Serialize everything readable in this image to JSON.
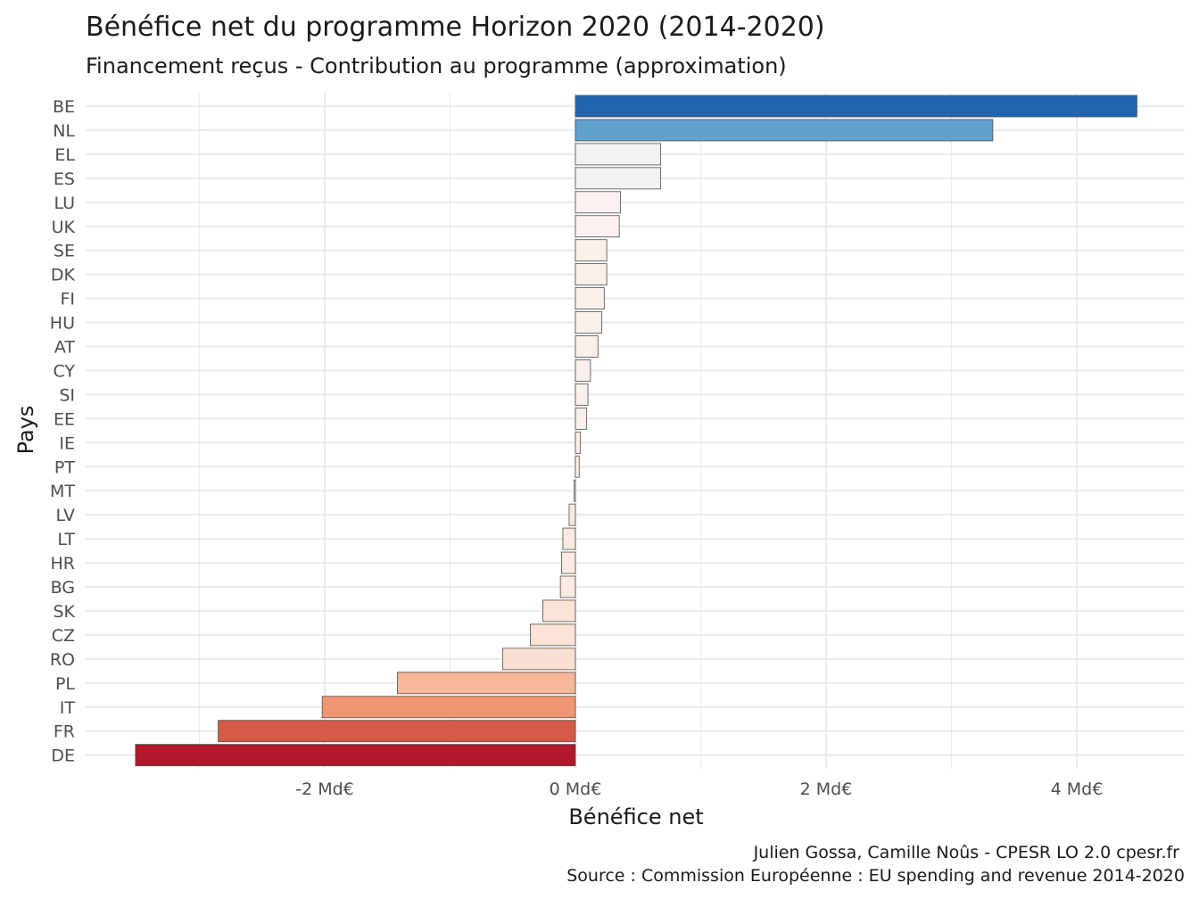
{
  "chart_data": {
    "type": "bar",
    "orientation": "horizontal",
    "title": "Bénéfice net du programme Horizon 2020 (2014-2020)",
    "subtitle": "Financement reçus - Contribution au programme (approximation)",
    "xlabel": "Bénéfice net",
    "ylabel": "Pays",
    "x_unit_suffix": " Md€",
    "xlim": [
      -3.7,
      4.75
    ],
    "x_ticks": [
      -2,
      0,
      2,
      4
    ],
    "x_tick_labels": [
      "-2 Md€",
      "0 Md€",
      "2 Md€",
      "4 Md€"
    ],
    "categories": [
      "BE",
      "NL",
      "EL",
      "ES",
      "LU",
      "UK",
      "SE",
      "DK",
      "FI",
      "HU",
      "AT",
      "CY",
      "SI",
      "EE",
      "IE",
      "PT",
      "MT",
      "LV",
      "LT",
      "HR",
      "BG",
      "SK",
      "CZ",
      "RO",
      "PL",
      "IT",
      "FR",
      "DE"
    ],
    "values": [
      4.48,
      3.33,
      0.68,
      0.68,
      0.36,
      0.35,
      0.25,
      0.25,
      0.23,
      0.21,
      0.18,
      0.12,
      0.1,
      0.09,
      0.04,
      0.03,
      -0.01,
      -0.05,
      -0.1,
      -0.11,
      -0.12,
      -0.26,
      -0.36,
      -0.58,
      -1.42,
      -2.02,
      -2.85,
      -3.51
    ],
    "colors": [
      "#2166ac",
      "#62a1cb",
      "#f2f2f2",
      "#f2f2f2",
      "#f8f1ef",
      "#f8f1ef",
      "#fbefe9",
      "#fbefe9",
      "#fbefe9",
      "#faefeb",
      "#faefeb",
      "#faefeb",
      "#faefeb",
      "#faefeb",
      "#faefeb",
      "#faefeb",
      "#faefeb",
      "#fbe9e2",
      "#fbe9e2",
      "#fbe9e2",
      "#fbe9e2",
      "#fbe3d7",
      "#fbe3d7",
      "#fbe1d3",
      "#f7b799",
      "#f09673",
      "#d55b47",
      "#b0182b"
    ],
    "grid": true,
    "legend": "none",
    "caption": [
      "Julien Gossa, Camille Noûs - CPESR LO 2.0 cpesr.fr",
      "Source : Commission Européenne : EU spending and revenue 2014-2020"
    ]
  }
}
